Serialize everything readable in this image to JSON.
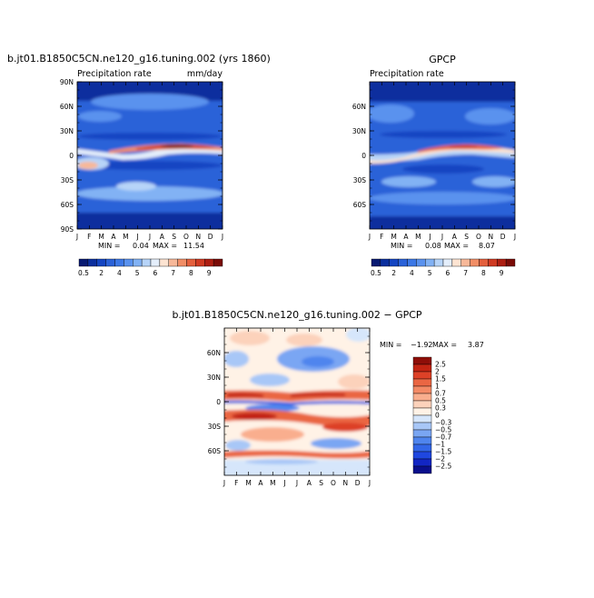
{
  "page": {
    "background": "#ffffff"
  },
  "chart_data": [
    {
      "id": "model",
      "type": "heatmap",
      "title": "b.jt01.B1850C5CN.ne120_g16.tuning.002 (yrs 1860)",
      "subtitle_left": "Precipitation rate",
      "subtitle_right": "mm/day",
      "x_ticks": [
        "J",
        "F",
        "M",
        "A",
        "M",
        "J",
        "J",
        "A",
        "S",
        "O",
        "N",
        "D",
        "J"
      ],
      "y_ticks": [
        "90N",
        "60N",
        "30N",
        "0",
        "30S",
        "60S",
        "90S"
      ],
      "y_range": [
        -90,
        90
      ],
      "stats": {
        "min_label": "MIN =",
        "min_value": "0.04",
        "max_label": "MAX =",
        "max_value": "11.54"
      },
      "colorbar_labels": [
        "0.5",
        "2",
        "4",
        "5",
        "6",
        "7",
        "8",
        "9"
      ],
      "levels": [
        0.5,
        1,
        2,
        3,
        4,
        4.5,
        5,
        5.5,
        6,
        6.5,
        7,
        7.5,
        8,
        8.5,
        9
      ],
      "colors": [
        "#081a72",
        "#0b2f9e",
        "#1445c2",
        "#2a62d8",
        "#3c78e6",
        "#5a92ee",
        "#82b2f4",
        "#b7d4f8",
        "#e4eefb",
        "#fde4d2",
        "#f7b899",
        "#f18e66",
        "#e4603d",
        "#cf3a22",
        "#ad1e12",
        "#7a0b07"
      ]
    },
    {
      "id": "obs",
      "type": "heatmap",
      "title": "GPCP",
      "subtitle_left": "Precipitation rate",
      "x_ticks": [
        "J",
        "F",
        "M",
        "A",
        "M",
        "J",
        "J",
        "A",
        "S",
        "O",
        "N",
        "D",
        "J"
      ],
      "y_ticks": [
        "60N",
        "30N",
        "0",
        "30S",
        "60S"
      ],
      "y_range": [
        -90,
        90
      ],
      "stats": {
        "min_label": "MIN =",
        "min_value": "0.08",
        "max_label": "MAX =",
        "max_value": "8.07"
      },
      "colorbar_labels": [
        "0.5",
        "2",
        "4",
        "5",
        "6",
        "7",
        "8",
        "9"
      ],
      "levels": [
        0.5,
        1,
        2,
        3,
        4,
        4.5,
        5,
        5.5,
        6,
        6.5,
        7,
        7.5,
        8,
        8.5,
        9
      ],
      "colors": [
        "#081a72",
        "#0b2f9e",
        "#1445c2",
        "#2a62d8",
        "#3c78e6",
        "#5a92ee",
        "#82b2f4",
        "#b7d4f8",
        "#e4eefb",
        "#fde4d2",
        "#f7b899",
        "#f18e66",
        "#e4603d",
        "#cf3a22",
        "#ad1e12",
        "#7a0b07"
      ]
    },
    {
      "id": "diff",
      "type": "heatmap",
      "title": "b.jt01.B1850C5CN.ne120_g16.tuning.002 − GPCP",
      "x_ticks": [
        "J",
        "F",
        "M",
        "A",
        "M",
        "J",
        "J",
        "A",
        "S",
        "O",
        "N",
        "D",
        "J"
      ],
      "y_ticks": [
        "60N",
        "30N",
        "0",
        "30S",
        "60S"
      ],
      "y_range": [
        -90,
        90
      ],
      "stats": {
        "min_label": "MIN =",
        "min_value": "−1.92",
        "max_label": "MAX =",
        "max_value": "3.87"
      },
      "colorbar_labels": [
        "2.5",
        "2",
        "1.5",
        "1",
        "0.7",
        "0.5",
        "0.3",
        "0",
        "−0.3",
        "−0.5",
        "−0.7",
        "−1",
        "−1.5",
        "−2",
        "−2.5"
      ],
      "levels": [
        -2.5,
        -2,
        -1.5,
        -1,
        -0.7,
        -0.5,
        -0.3,
        0,
        0.3,
        0.5,
        0.7,
        1,
        1.5,
        2,
        2.5
      ],
      "colors": [
        "#0a0f8c",
        "#1226c4",
        "#1f47e0",
        "#3266e8",
        "#4f85ee",
        "#7aa6f3",
        "#a8c7f7",
        "#d6e6fb",
        "#fff2e6",
        "#fcd2bb",
        "#f9ae8e",
        "#f38a66",
        "#ea6643",
        "#dd4127",
        "#c22412",
        "#8e0e08"
      ]
    }
  ]
}
